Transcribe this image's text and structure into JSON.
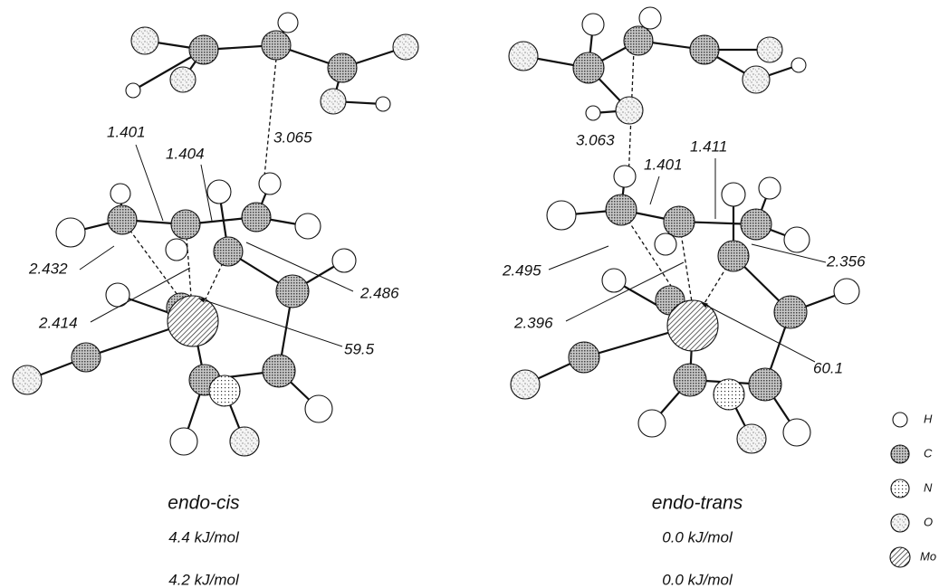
{
  "structures": [
    {
      "name": "endo-cis",
      "energies": [
        "4.4 kJ/mol",
        "4.2 kJ/mol"
      ],
      "labels": [
        "1.401",
        "1.404",
        "3.065",
        "2.432",
        "2.414",
        "2.486",
        "59.5"
      ]
    },
    {
      "name": "endo-trans",
      "energies": [
        "0.0 kJ/mol",
        "0.0 kJ/mol"
      ],
      "labels": [
        "3.063",
        "1.401",
        "1.411",
        "2.495",
        "2.356",
        "2.396",
        "60.1"
      ]
    }
  ],
  "legend": [
    "H",
    "C",
    "N",
    "O",
    "Mo"
  ]
}
